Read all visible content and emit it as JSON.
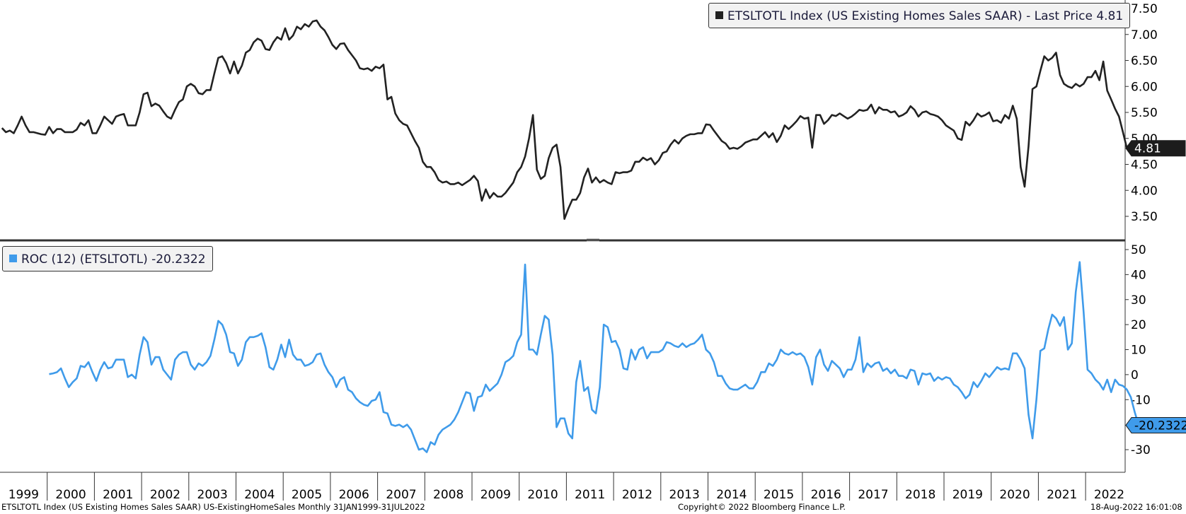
{
  "chart_data": [
    {
      "type": "line",
      "legend": "ETSLTOTL Index (US Existing Homes Sales SAAR) - Last Price 4.81",
      "last_value_label": "4.81",
      "color": "#222222",
      "ylim": [
        3.2,
        7.55
      ],
      "yticks": [
        "3.50",
        "4.00",
        "4.50",
        "5.00",
        "5.50",
        "6.00",
        "6.50",
        "7.00",
        "7.50"
      ],
      "x_start": "1999-01",
      "x_end": "2022-07",
      "legend_position": "top-right",
      "series": [
        {
          "values": [
            5.2,
            5.12,
            5.15,
            5.1,
            5.25,
            5.42,
            5.25,
            5.12,
            5.12,
            5.1,
            5.08,
            5.07,
            5.22,
            5.1,
            5.18,
            5.18,
            5.12,
            5.12,
            5.12,
            5.17,
            5.3,
            5.25,
            5.35,
            5.1,
            5.1,
            5.25,
            5.42,
            5.35,
            5.28,
            5.42,
            5.45,
            5.47,
            5.25,
            5.25,
            5.25,
            5.5,
            5.85,
            5.88,
            5.62,
            5.67,
            5.63,
            5.52,
            5.42,
            5.38,
            5.55,
            5.7,
            5.75,
            6.0,
            6.05,
            6.0,
            5.87,
            5.85,
            5.93,
            5.93,
            6.25,
            6.55,
            6.58,
            6.45,
            6.25,
            6.48,
            6.25,
            6.4,
            6.65,
            6.7,
            6.85,
            6.92,
            6.88,
            6.72,
            6.7,
            6.85,
            6.95,
            6.9,
            7.12,
            6.9,
            6.98,
            7.15,
            7.1,
            7.2,
            7.15,
            7.25,
            7.27,
            7.15,
            7.08,
            6.95,
            6.8,
            6.72,
            6.82,
            6.83,
            6.7,
            6.6,
            6.5,
            6.35,
            6.33,
            6.35,
            6.3,
            6.38,
            6.35,
            6.42,
            5.75,
            5.8,
            5.48,
            5.35,
            5.28,
            5.25,
            5.1,
            4.95,
            4.82,
            4.55,
            4.45,
            4.45,
            4.35,
            4.2,
            4.15,
            4.17,
            4.12,
            4.12,
            4.15,
            4.1,
            4.15,
            4.2,
            4.28,
            4.18,
            3.8,
            4.02,
            3.85,
            3.95,
            3.88,
            3.88,
            3.95,
            4.05,
            4.15,
            4.35,
            4.45,
            4.65,
            5.0,
            5.45,
            4.4,
            4.22,
            4.28,
            4.62,
            4.82,
            4.88,
            4.45,
            3.45,
            3.65,
            3.82,
            3.82,
            3.95,
            4.25,
            4.42,
            4.15,
            4.25,
            4.15,
            4.2,
            4.15,
            4.12,
            4.35,
            4.33,
            4.35,
            4.35,
            4.38,
            4.55,
            4.55,
            4.63,
            4.58,
            4.62,
            4.5,
            4.58,
            4.72,
            4.75,
            4.88,
            4.97,
            4.9,
            5.0,
            5.05,
            5.08,
            5.08,
            5.1,
            5.1,
            5.27,
            5.26,
            5.15,
            5.05,
            4.95,
            4.9,
            4.8,
            4.82,
            4.8,
            4.85,
            4.92,
            4.95,
            4.98,
            4.98,
            5.05,
            5.12,
            5.02,
            5.1,
            4.93,
            5.05,
            5.25,
            5.18,
            5.25,
            5.33,
            5.43,
            5.38,
            5.4,
            4.82,
            5.45,
            5.45,
            5.28,
            5.35,
            5.45,
            5.43,
            5.48,
            5.43,
            5.38,
            5.42,
            5.48,
            5.55,
            5.53,
            5.55,
            5.65,
            5.48,
            5.6,
            5.55,
            5.55,
            5.5,
            5.52,
            5.42,
            5.45,
            5.5,
            5.62,
            5.55,
            5.42,
            5.5,
            5.52,
            5.47,
            5.45,
            5.42,
            5.35,
            5.25,
            5.2,
            5.15,
            5.0,
            4.97,
            5.32,
            5.25,
            5.35,
            5.48,
            5.42,
            5.45,
            5.5,
            5.33,
            5.35,
            5.3,
            5.45,
            5.38,
            5.63,
            5.38,
            4.45,
            4.07,
            4.85,
            5.95,
            6.0,
            6.3,
            6.58,
            6.5,
            6.55,
            6.65,
            6.22,
            6.05,
            6.0,
            5.97,
            6.05,
            6.0,
            6.05,
            6.18,
            6.18,
            6.3,
            6.12,
            6.48,
            5.92,
            5.75,
            5.57,
            5.42,
            5.12,
            4.81
          ]
        }
      ]
    },
    {
      "type": "line",
      "legend": "ROC (12) (ETSLTOTL) -20.2322",
      "last_value_label": "-20.2322",
      "color": "#3f9bea",
      "ylim": [
        -38,
        52
      ],
      "yticks": [
        "-30",
        "-10",
        "0",
        "10",
        "20",
        "30",
        "40",
        "50"
      ],
      "x_start": "2000-01",
      "x_end": "2022-07",
      "legend_position": "top-left",
      "series": [
        {
          "values": [
            0.2,
            0.5,
            1.0,
            2.5,
            -1.5,
            -5.0,
            -3.0,
            -1.5,
            3.5,
            3.0,
            5.0,
            1.0,
            -2.5,
            2.0,
            5.0,
            2.5,
            3.0,
            6.0,
            6.0,
            6.0,
            -1.0,
            0.0,
            -1.5,
            8.0,
            15.0,
            13.0,
            4.0,
            7.0,
            7.0,
            2.0,
            0.0,
            -2.0,
            6.0,
            8.0,
            9.0,
            9.0,
            4.0,
            2.0,
            4.5,
            3.5,
            5.0,
            7.5,
            14.0,
            21.5,
            20.0,
            16.0,
            9.0,
            8.5,
            3.5,
            6.0,
            13.0,
            15.0,
            15.0,
            15.5,
            16.5,
            11.0,
            3.0,
            2.0,
            6.0,
            12.0,
            7.0,
            14.0,
            8.0,
            6.0,
            6.0,
            3.5,
            4.0,
            5.0,
            8.0,
            8.5,
            4.0,
            1.0,
            -1.0,
            -5.0,
            -2.0,
            -1.0,
            -6.0,
            -7.0,
            -9.5,
            -11.0,
            -12.0,
            -12.5,
            -10.5,
            -10.0,
            -7.0,
            -15.0,
            -15.5,
            -20.0,
            -20.5,
            -20.0,
            -21.0,
            -20.0,
            -22.0,
            -26.0,
            -30.0,
            -29.5,
            -31.0,
            -27.0,
            -28.0,
            -24.0,
            -22.0,
            -21.0,
            -20.0,
            -18.0,
            -15.0,
            -11.0,
            -7.0,
            -7.5,
            -14.5,
            -9.0,
            -8.5,
            -4.0,
            -6.5,
            -5.0,
            -3.5,
            0.0,
            5.0,
            6.0,
            7.5,
            13.0,
            16.0,
            44.0,
            10.0,
            10.0,
            8.0,
            16.0,
            23.5,
            22.0,
            8.0,
            -21.0,
            -17.5,
            -17.5,
            -23.5,
            -25.5,
            -3.0,
            5.5,
            -6.5,
            -5.0,
            -14.0,
            -15.5,
            -5.0,
            20.0,
            19.0,
            13.0,
            13.5,
            10.0,
            2.5,
            2.0,
            10.0,
            6.0,
            10.0,
            11.0,
            6.5,
            9.0,
            9.0,
            9.0,
            10.0,
            13.0,
            12.5,
            11.5,
            11.0,
            12.5,
            11.0,
            12.0,
            12.5,
            14.0,
            16.0,
            10.0,
            8.5,
            5.0,
            -0.5,
            -0.5,
            -3.5,
            -5.5,
            -6.0,
            -6.0,
            -5.0,
            -4.0,
            -5.5,
            -5.5,
            -3.0,
            1.0,
            1.0,
            4.5,
            3.5,
            6.0,
            10.0,
            8.5,
            8.0,
            9.0,
            8.0,
            8.5,
            7.0,
            3.0,
            -4.0,
            7.0,
            10.0,
            4.0,
            1.5,
            5.5,
            4.0,
            2.5,
            -1.0,
            2.0,
            2.0,
            6.0,
            15.0,
            1.0,
            4.5,
            3.0,
            4.5,
            5.0,
            1.5,
            2.5,
            0.5,
            2.0,
            -0.5,
            -0.5,
            -1.5,
            2.0,
            1.5,
            -4.0,
            0.5,
            0.0,
            0.5,
            -2.5,
            -1.0,
            -2.0,
            -1.0,
            -1.5,
            -4.0,
            -5.0,
            -7.0,
            -9.5,
            -8.0,
            -3.0,
            -5.0,
            -2.5,
            0.5,
            -1.0,
            1.0,
            3.0,
            2.0,
            2.5,
            2.0,
            8.5,
            8.5,
            6.0,
            2.5,
            -16.0,
            -25.5,
            -10.0,
            9.5,
            10.5,
            18.0,
            24.0,
            22.5,
            19.5,
            23.0,
            10.0,
            12.5,
            33.0,
            45.0,
            25.0,
            2.0,
            0.5,
            -2.0,
            -3.5,
            -6.0,
            -2.0,
            -7.0,
            -2.0,
            -4.0,
            -4.5,
            -6.0,
            -9.0,
            -15.0,
            -20.2322
          ]
        }
      ]
    }
  ],
  "x_axis": {
    "years": [
      "1999",
      "2000",
      "2001",
      "2002",
      "2003",
      "2004",
      "2005",
      "2006",
      "2007",
      "2008",
      "2009",
      "2010",
      "2011",
      "2012",
      "2013",
      "2014",
      "2015",
      "2016",
      "2017",
      "2018",
      "2019",
      "2020",
      "2021",
      "2022"
    ]
  },
  "footer": {
    "left": "ETSLTOTL Index (US Existing Homes Sales SAAR) US-ExistingHomeSales  Monthly 31JAN1999-31JUL2022",
    "center": "Copyright© 2022 Bloomberg Finance L.P.",
    "right": "18-Aug-2022 16:01:08"
  }
}
